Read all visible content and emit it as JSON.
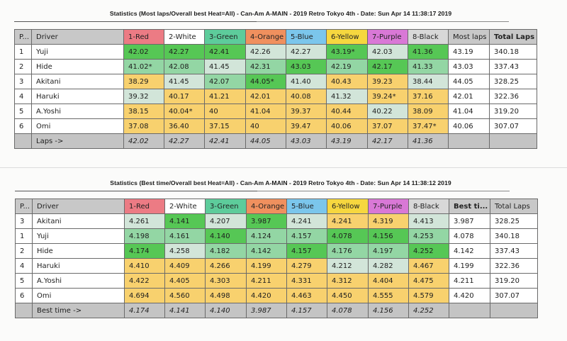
{
  "table1": {
    "title": "Statistics (Most laps/Overall best Heat=All) - Can-Am A-MAIN - 2019 Retro Tokyo 4th - Date: Sun Apr 14 11:38:17 2019",
    "headers": [
      "P...",
      "Driver",
      "1-Red",
      "2-White",
      "3-Green",
      "4-Orange",
      "5-Blue",
      "6-Yellow",
      "7-Purple",
      "8-Black",
      "Most laps",
      "Total Laps"
    ],
    "rows": [
      {
        "pos": "1",
        "driver": "Yuji",
        "cells": [
          "42.02",
          "42.27",
          "42.41",
          "42.26",
          "42.27",
          "43.19*",
          "42.03",
          "41.36"
        ],
        "styles": [
          "g1",
          "g1",
          "g1",
          "g3",
          "g3",
          "g1",
          "g3",
          "g1"
        ],
        "best": "43.19",
        "total": "340.18",
        "total_bold": true,
        "best_bold": false
      },
      {
        "pos": "2",
        "driver": "Hide",
        "cells": [
          "41.02*",
          "42.08",
          "41.45",
          "42.31",
          "43.03",
          "42.19",
          "42.17",
          "41.33"
        ],
        "styles": [
          "g2",
          "g2",
          "g3",
          "g2",
          "g1",
          "g2",
          "g1",
          "g2"
        ],
        "best": "43.03",
        "total": "337.43",
        "total_bold": false,
        "best_bold": false
      },
      {
        "pos": "3",
        "driver": "Akitani",
        "cells": [
          "38.29",
          "41.45",
          "42.07",
          "44.05*",
          "41.40",
          "40.43",
          "39.23",
          "38.44"
        ],
        "styles": [
          "y",
          "g3",
          "g2",
          "g1",
          "g3",
          "y",
          "y",
          "g3"
        ],
        "best": "44.05",
        "total": "328.25",
        "total_bold": false,
        "best_bold": true
      },
      {
        "pos": "4",
        "driver": "Haruki",
        "cells": [
          "39.32",
          "40.17",
          "41.21",
          "42.01",
          "40.08",
          "41.32",
          "39.24*",
          "37.16"
        ],
        "styles": [
          "g3",
          "y",
          "y",
          "y",
          "y",
          "g3",
          "y",
          "y"
        ],
        "best": "42.01",
        "total": "322.36",
        "total_bold": false,
        "best_bold": false
      },
      {
        "pos": "5",
        "driver": "A.Yoshi",
        "cells": [
          "38.15",
          "40.04*",
          "40",
          "41.04",
          "39.37",
          "40.44",
          "40.22",
          "38.09"
        ],
        "styles": [
          "y",
          "y",
          "y",
          "y",
          "y",
          "y",
          "g3",
          "y"
        ],
        "best": "41.04",
        "total": "319.20",
        "total_bold": false,
        "best_bold": false
      },
      {
        "pos": "6",
        "driver": "Omi",
        "cells": [
          "37.08",
          "36.40",
          "37.15",
          "40",
          "39.47",
          "40.06",
          "37.07",
          "37.47*"
        ],
        "styles": [
          "y",
          "y",
          "y",
          "y",
          "y",
          "y",
          "y",
          "y"
        ],
        "best": "40.06",
        "total": "307.07",
        "total_bold": false,
        "best_bold": false
      }
    ],
    "footer": {
      "label": "Laps ->",
      "cells": [
        "42.02",
        "42.27",
        "42.41",
        "44.05",
        "43.03",
        "43.19",
        "42.17",
        "41.36"
      ],
      "bold_index": 3
    }
  },
  "table2": {
    "title": "Statistics (Best time/Overall best Heat=All) - Can-Am A-MAIN - 2019 Retro Tokyo 4th - Date: Sun Apr 14 11:38:12 2019",
    "headers": [
      "P...",
      "Driver",
      "1-Red",
      "2-White",
      "3-Green",
      "4-Orange",
      "5-Blue",
      "6-Yellow",
      "7-Purple",
      "8-Black",
      "Best ti...",
      "Total Laps"
    ],
    "rows": [
      {
        "pos": "3",
        "driver": "Akitani",
        "cells": [
          "4.261",
          "4.141",
          "4.207",
          "3.987",
          "4.241",
          "4.241",
          "4.319",
          "4.413"
        ],
        "styles": [
          "g3",
          "g1",
          "g3",
          "g1",
          "g3",
          "y",
          "y",
          "g3"
        ],
        "best": "3.987",
        "total": "328.25",
        "total_bold": false,
        "best_bold": true
      },
      {
        "pos": "1",
        "driver": "Yuji",
        "cells": [
          "4.198",
          "4.161",
          "4.140",
          "4.124",
          "4.157",
          "4.078",
          "4.156",
          "4.253"
        ],
        "styles": [
          "g2",
          "g2",
          "g1",
          "g2",
          "g2",
          "g1",
          "g1",
          "g2"
        ],
        "best": "4.078",
        "total": "340.18",
        "total_bold": true,
        "best_bold": false
      },
      {
        "pos": "2",
        "driver": "Hide",
        "cells": [
          "4.174",
          "4.258",
          "4.182",
          "4.142",
          "4.157",
          "4.176",
          "4.197",
          "4.252"
        ],
        "styles": [
          "g1",
          "g3",
          "g2",
          "g2",
          "g1",
          "g2",
          "g2",
          "g1"
        ],
        "best": "4.142",
        "total": "337.43",
        "total_bold": false,
        "best_bold": false
      },
      {
        "pos": "4",
        "driver": "Haruki",
        "cells": [
          "4.410",
          "4.409",
          "4.266",
          "4.199",
          "4.279",
          "4.212",
          "4.282",
          "4.467"
        ],
        "styles": [
          "y",
          "y",
          "y",
          "y",
          "y",
          "g3",
          "g3",
          "y"
        ],
        "best": "4.199",
        "total": "322.36",
        "total_bold": false,
        "best_bold": false
      },
      {
        "pos": "5",
        "driver": "A.Yoshi",
        "cells": [
          "4.422",
          "4.405",
          "4.303",
          "4.211",
          "4.331",
          "4.312",
          "4.404",
          "4.475"
        ],
        "styles": [
          "y",
          "y",
          "y",
          "y",
          "y",
          "y",
          "y",
          "y"
        ],
        "best": "4.211",
        "total": "319.20",
        "total_bold": false,
        "best_bold": false
      },
      {
        "pos": "6",
        "driver": "Omi",
        "cells": [
          "4.694",
          "4.560",
          "4.498",
          "4.420",
          "4.463",
          "4.450",
          "4.555",
          "4.579"
        ],
        "styles": [
          "y",
          "y",
          "y",
          "y",
          "y",
          "y",
          "y",
          "y"
        ],
        "best": "4.420",
        "total": "307.07",
        "total_bold": false,
        "best_bold": false
      }
    ],
    "footer": {
      "label": "Best time ->",
      "cells": [
        "4.174",
        "4.141",
        "4.140",
        "3.987",
        "4.157",
        "4.078",
        "4.156",
        "4.252"
      ],
      "bold_index": 3
    }
  },
  "colors": {
    "red": "#ec7b84",
    "white": "#ffffff",
    "green": "#5dcc9b",
    "orange": "#f0905e",
    "blue": "#7bc6ec",
    "yellow": "#f6d73f",
    "purple": "#d978d6",
    "black": "#d8d8d8",
    "best_green": "#56c755",
    "mid_green": "#93d6a4",
    "light_green": "#d2e5d9",
    "slow_yellow": "#f8d16e",
    "footer_gray": "#c4c4c4"
  }
}
